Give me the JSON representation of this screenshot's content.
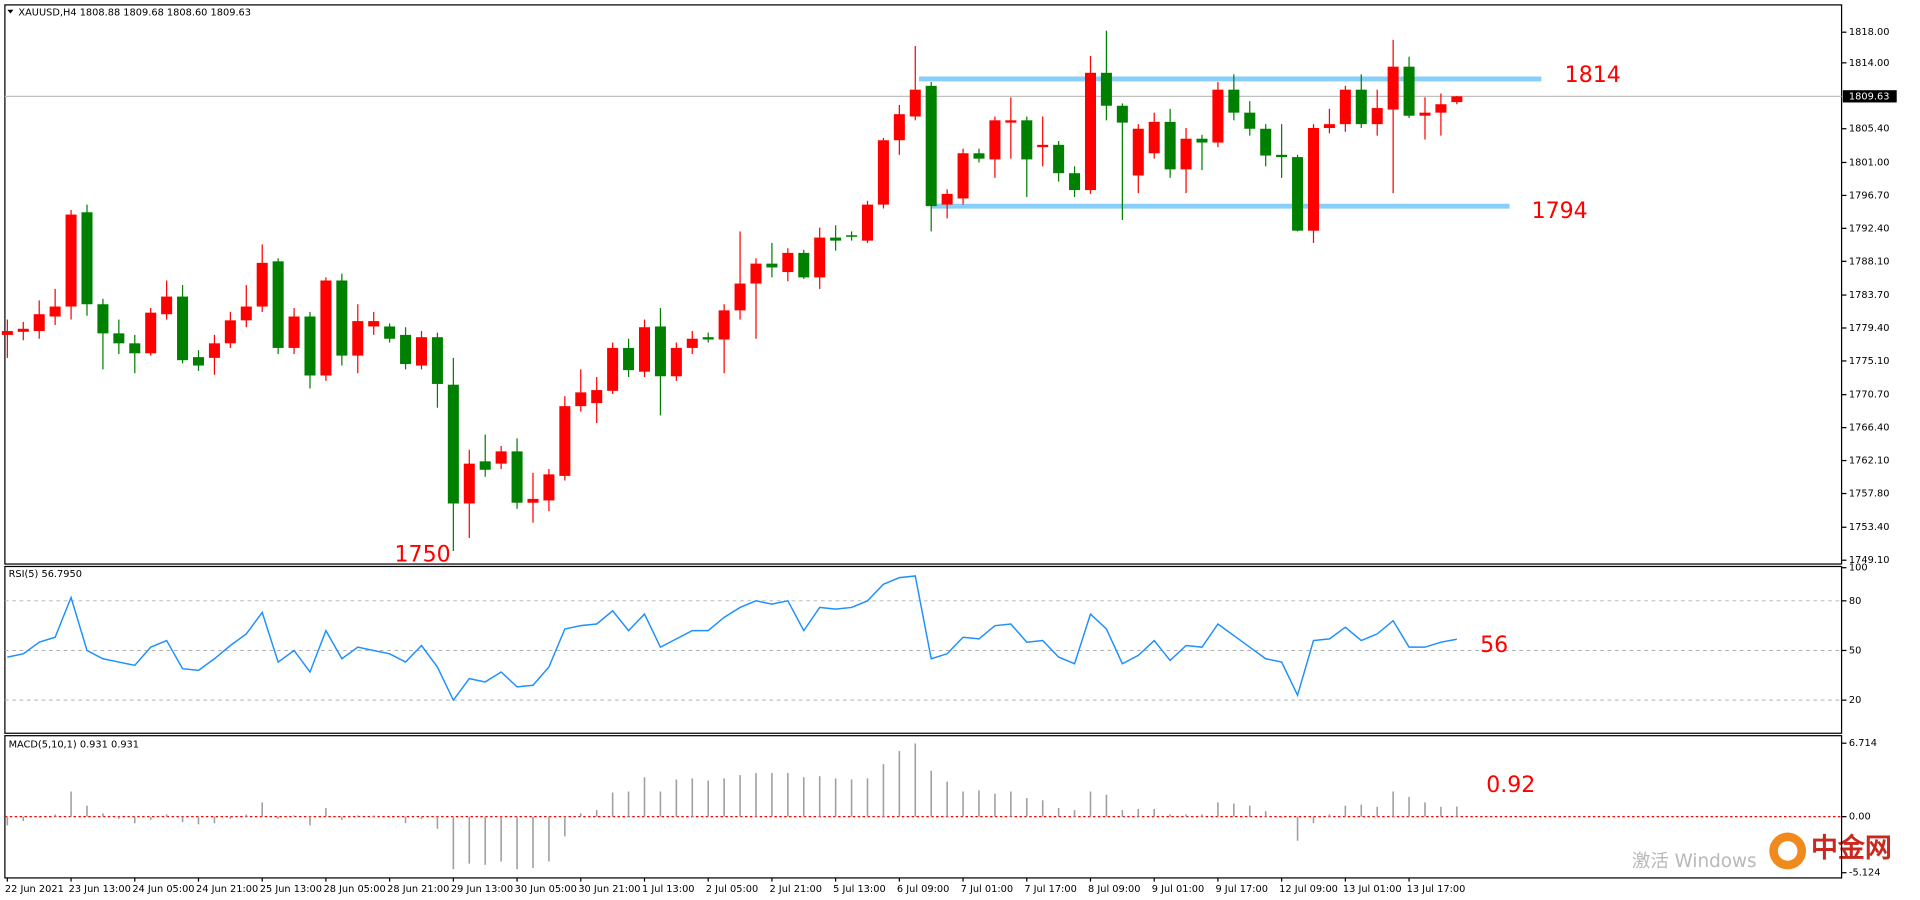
{
  "chart_data": [
    {
      "type": "candlestick",
      "title": "XAUUSD,H4  1808.88 1809.68 1808.60 1809.63",
      "up_color": "#ff0000",
      "down_color": "#008000",
      "categories": [
        "22 Jun 2021",
        null,
        null,
        null,
        "23 Jun 13:00",
        null,
        null,
        null,
        "24 Jun 05:00",
        null,
        null,
        null,
        "24 Jun 21:00",
        null,
        null,
        null,
        "25 Jun 13:00",
        null,
        null,
        null,
        "28 Jun 05:00",
        null,
        null,
        null,
        "28 Jun 21:00",
        null,
        null,
        null,
        "29 Jun 13:00",
        null,
        null,
        null,
        "30 Jun 05:00",
        null,
        null,
        null,
        "30 Jun 21:00",
        null,
        null,
        null,
        "1 Jul 13:00",
        null,
        null,
        null,
        "2 Jul 05:00",
        null,
        null,
        null,
        "2 Jul 21:00",
        null,
        null,
        null,
        "5 Jul 13:00",
        null,
        null,
        null,
        "6 Jul 09:00",
        null,
        null,
        null,
        "7 Jul 01:00",
        null,
        null,
        null,
        "7 Jul 17:00",
        null,
        null,
        null,
        "8 Jul 09:00",
        null,
        null,
        null,
        "9 Jul 01:00",
        null,
        null,
        null,
        "9 Jul 17:00",
        null,
        null,
        null,
        "12 Jul 09:00",
        null,
        null,
        null,
        "13 Jul 01:00",
        null,
        null,
        null,
        "13 Jul 17:00",
        null,
        null,
        null
      ],
      "open": [
        1778.5,
        1778.9,
        1779.0,
        1780.9,
        1782.2,
        1794.5,
        1782.5,
        1778.7,
        1777.4,
        1776.1,
        1781.2,
        1783.5,
        1775.6,
        1775.5,
        1777.4,
        1780.4,
        1782.2,
        1788.1,
        1776.8,
        1780.9,
        1773.2,
        1785.6,
        1775.8,
        1779.6,
        1779.6,
        1778.5,
        1774.5,
        1778.2,
        1772.0,
        1756.5,
        1762.0,
        1761.7,
        1763.3,
        1756.6,
        1756.9,
        1760.1,
        1769.2,
        1769.6,
        1771.2,
        1776.8,
        1773.7,
        1779.6,
        1773.1,
        1776.8,
        1778.2,
        1777.9,
        1781.7,
        1785.2,
        1787.8,
        1786.7,
        1789.2,
        1786.0,
        1791.2,
        1791.5,
        1790.8,
        1795.5,
        1803.9,
        1807.0,
        1811.0,
        1795.5,
        1796.3,
        1802.2,
        1801.4,
        1806.2,
        1806.5,
        1803.0,
        1803.3,
        1799.6,
        1797.4,
        1812.7,
        1808.4,
        1799.3,
        1802.2,
        1806.3,
        1800.1,
        1804.1,
        1803.6,
        1810.5,
        1807.5,
        1805.4,
        1802.0,
        1801.7,
        1792.1,
        1805.5,
        1806.0,
        1810.5,
        1806.0,
        1807.9,
        1813.5,
        1807.1,
        1807.5,
        1808.88
      ],
      "high": [
        1780.5,
        1780.2,
        1783.0,
        1784.5,
        1794.8,
        1795.5,
        1783.2,
        1780.5,
        1778.5,
        1782.0,
        1785.6,
        1785.0,
        1776.5,
        1778.5,
        1781.5,
        1785.0,
        1790.3,
        1788.5,
        1782.0,
        1781.5,
        1786.0,
        1786.5,
        1782.5,
        1781.5,
        1780.0,
        1779.5,
        1779.0,
        1778.8,
        1775.5,
        1763.5,
        1765.5,
        1764.0,
        1765.0,
        1760.5,
        1761.0,
        1770.5,
        1774.0,
        1773.0,
        1777.5,
        1778.0,
        1780.5,
        1782.0,
        1777.5,
        1779.0,
        1778.8,
        1782.5,
        1792.0,
        1788.5,
        1790.5,
        1789.8,
        1789.6,
        1792.5,
        1792.8,
        1792.0,
        1796.0,
        1804.2,
        1808.5,
        1816.2,
        1811.5,
        1797.5,
        1802.8,
        1802.8,
        1807.0,
        1809.5,
        1807.0,
        1807.0,
        1803.8,
        1800.5,
        1814.9,
        1818.2,
        1808.7,
        1806.0,
        1807.5,
        1808.0,
        1805.5,
        1804.6,
        1811.5,
        1812.5,
        1809.0,
        1806.0,
        1806.0,
        1802.0,
        1806.0,
        1808.0,
        1811.0,
        1812.5,
        1810.5,
        1817.0,
        1814.8,
        1809.5,
        1810.0,
        1809.68
      ],
      "low": [
        1775.5,
        1777.8,
        1778.0,
        1779.8,
        1780.5,
        1781.0,
        1774.0,
        1776.0,
        1773.5,
        1775.8,
        1780.5,
        1774.8,
        1773.8,
        1773.3,
        1776.8,
        1779.5,
        1781.5,
        1776.0,
        1776.0,
        1771.5,
        1772.5,
        1774.5,
        1773.5,
        1778.5,
        1777.5,
        1774.0,
        1774.0,
        1769.0,
        1750.3,
        1752.0,
        1760.0,
        1761.0,
        1755.8,
        1754.0,
        1755.5,
        1759.5,
        1768.5,
        1767.0,
        1770.8,
        1773.0,
        1773.0,
        1768.0,
        1772.5,
        1776.0,
        1777.5,
        1773.5,
        1780.5,
        1778.0,
        1786.0,
        1785.5,
        1785.8,
        1784.5,
        1789.5,
        1790.8,
        1790.5,
        1795.0,
        1802.0,
        1806.5,
        1792.0,
        1793.7,
        1795.5,
        1801.0,
        1799.0,
        1801.5,
        1796.5,
        1800.5,
        1798.5,
        1796.5,
        1796.9,
        1806.5,
        1793.5,
        1797.0,
        1801.5,
        1799.0,
        1797.0,
        1800.0,
        1803.0,
        1806.5,
        1804.5,
        1800.5,
        1799.0,
        1792.0,
        1790.5,
        1804.8,
        1805.0,
        1805.5,
        1804.5,
        1797.0,
        1806.8,
        1804.0,
        1804.5,
        1808.6
      ],
      "close": [
        1779.0,
        1779.3,
        1781.2,
        1782.2,
        1794.2,
        1782.5,
        1778.7,
        1777.4,
        1776.1,
        1781.4,
        1783.5,
        1775.2,
        1774.5,
        1777.4,
        1780.4,
        1782.2,
        1787.9,
        1776.8,
        1780.9,
        1773.2,
        1785.6,
        1775.8,
        1780.3,
        1780.3,
        1778.0,
        1774.7,
        1778.2,
        1772.1,
        1756.5,
        1761.7,
        1760.9,
        1763.3,
        1756.6,
        1757.1,
        1760.3,
        1769.2,
        1771.0,
        1771.3,
        1776.8,
        1773.9,
        1779.5,
        1773.1,
        1776.8,
        1778.0,
        1777.9,
        1781.7,
        1785.2,
        1787.8,
        1787.3,
        1789.2,
        1786.0,
        1791.2,
        1790.8,
        1791.3,
        1795.5,
        1803.9,
        1807.3,
        1810.5,
        1795.3,
        1796.9,
        1802.2,
        1801.5,
        1806.5,
        1806.5,
        1801.4,
        1803.3,
        1799.6,
        1797.4,
        1812.7,
        1808.4,
        1806.2,
        1805.4,
        1806.3,
        1800.1,
        1804.1,
        1803.6,
        1810.5,
        1807.5,
        1805.4,
        1801.9,
        1801.7,
        1792.1,
        1805.5,
        1806.0,
        1810.5,
        1806.0,
        1808.1,
        1813.5,
        1807.1,
        1807.5,
        1808.6,
        1809.63
      ],
      "ylim": [
        1748.6,
        1821.4
      ],
      "yticks": [
        {
          "value": 1818,
          "label": "1818.00"
        },
        {
          "value": 1814,
          "label": "1814.00"
        },
        {
          "value": 1805.4,
          "label": "1805.40"
        },
        {
          "value": 1801,
          "label": "1801.00"
        },
        {
          "value": 1796.7,
          "label": "1796.70"
        },
        {
          "value": 1792.4,
          "label": "1792.40"
        },
        {
          "value": 1788.1,
          "label": "1788.10"
        },
        {
          "value": 1783.7,
          "label": "1783.70"
        },
        {
          "value": 1779.4,
          "label": "1779.40"
        },
        {
          "value": 1775.1,
          "label": "1775.10"
        },
        {
          "value": 1770.7,
          "label": "1770.70"
        },
        {
          "value": 1766.4,
          "label": "1766.40"
        },
        {
          "value": 1762.1,
          "label": "1762.10"
        },
        {
          "value": 1757.8,
          "label": "1757.80"
        },
        {
          "value": 1753.4,
          "label": "1753.40"
        },
        {
          "value": 1749.1,
          "label": "1749.10"
        }
      ],
      "current_price": 1809.63,
      "hlines": [
        1811.9,
        1795.3
      ],
      "hline_color": "#87cefa",
      "annotations": [
        "1814",
        "1794",
        "1750"
      ],
      "annotation_color": "#ff0000"
    },
    {
      "type": "line",
      "title": "RSI(5) 56.7950",
      "color": "#1e90ff",
      "values": [
        46,
        48,
        55,
        58,
        82,
        50,
        45,
        43,
        41,
        52,
        56,
        39,
        38,
        45,
        53,
        60,
        73,
        43,
        50,
        37,
        62,
        45,
        52,
        50,
        48,
        43,
        53,
        40,
        20,
        33,
        31,
        37,
        28,
        29,
        40,
        63,
        65,
        66,
        74,
        62,
        72,
        52,
        57,
        62,
        62,
        70,
        76,
        80,
        78,
        80,
        62,
        76,
        75,
        76,
        80,
        90,
        94,
        95,
        45,
        48,
        58,
        57,
        65,
        66,
        55,
        56,
        46,
        42,
        72,
        63,
        42,
        47,
        56,
        44,
        53,
        52,
        66,
        59,
        52,
        45,
        43,
        23,
        56,
        57,
        64,
        56,
        60,
        68,
        52,
        52,
        55,
        56.795
      ],
      "ylim": [
        0,
        100
      ],
      "yticks": [
        100,
        80,
        50,
        20
      ],
      "grid": [
        80,
        50,
        20
      ],
      "annotations": [
        "56"
      ],
      "annotation_color": "#ff0000"
    },
    {
      "type": "bar",
      "title": "MACD(5,10,1) 0.931 0.931",
      "color": "#a0a0a0",
      "zero_line_color": "#ff0000",
      "values": [
        -0.8,
        -0.4,
        -0.1,
        0.2,
        2.3,
        1.0,
        0.3,
        -0.2,
        -0.6,
        -0.3,
        0.2,
        -0.5,
        -0.7,
        -0.6,
        -0.2,
        0.2,
        1.3,
        -0.2,
        0.1,
        -0.8,
        0.8,
        -0.3,
        0.1,
        0.1,
        -0.1,
        -0.6,
        -0.2,
        -1.1,
        -4.8,
        -4.3,
        -4.4,
        -4.1,
        -4.8,
        -4.7,
        -4.1,
        -1.8,
        0.3,
        0.6,
        2.2,
        2.3,
        3.6,
        2.3,
        3.4,
        3.5,
        3.3,
        3.5,
        3.8,
        4.0,
        4.0,
        4.0,
        3.6,
        3.7,
        3.5,
        3.4,
        3.5,
        4.8,
        6.0,
        6.7,
        4.2,
        3.2,
        2.3,
        2.4,
        2.1,
        2.3,
        1.7,
        1.5,
        0.8,
        0.6,
        2.3,
        2.0,
        0.6,
        0.7,
        0.7,
        0.2,
        0.2,
        0.2,
        1.3,
        1.2,
        1.0,
        0.5,
        -0.1,
        -2.2,
        -0.6,
        0.2,
        1.0,
        1.1,
        0.9,
        2.3,
        1.8,
        1.3,
        0.9,
        0.931
      ],
      "ylim": [
        -5.6,
        7.4
      ],
      "yticks": [
        6.714,
        {
          "value": 0,
          "label": "0.00"
        },
        {
          "value": -5.124,
          "label": "-5.124"
        }
      ],
      "annotations": [
        "0.92"
      ],
      "annotation_color": "#ff0000"
    }
  ],
  "watermark": [
    "激活 Windows",
    "中金网"
  ]
}
